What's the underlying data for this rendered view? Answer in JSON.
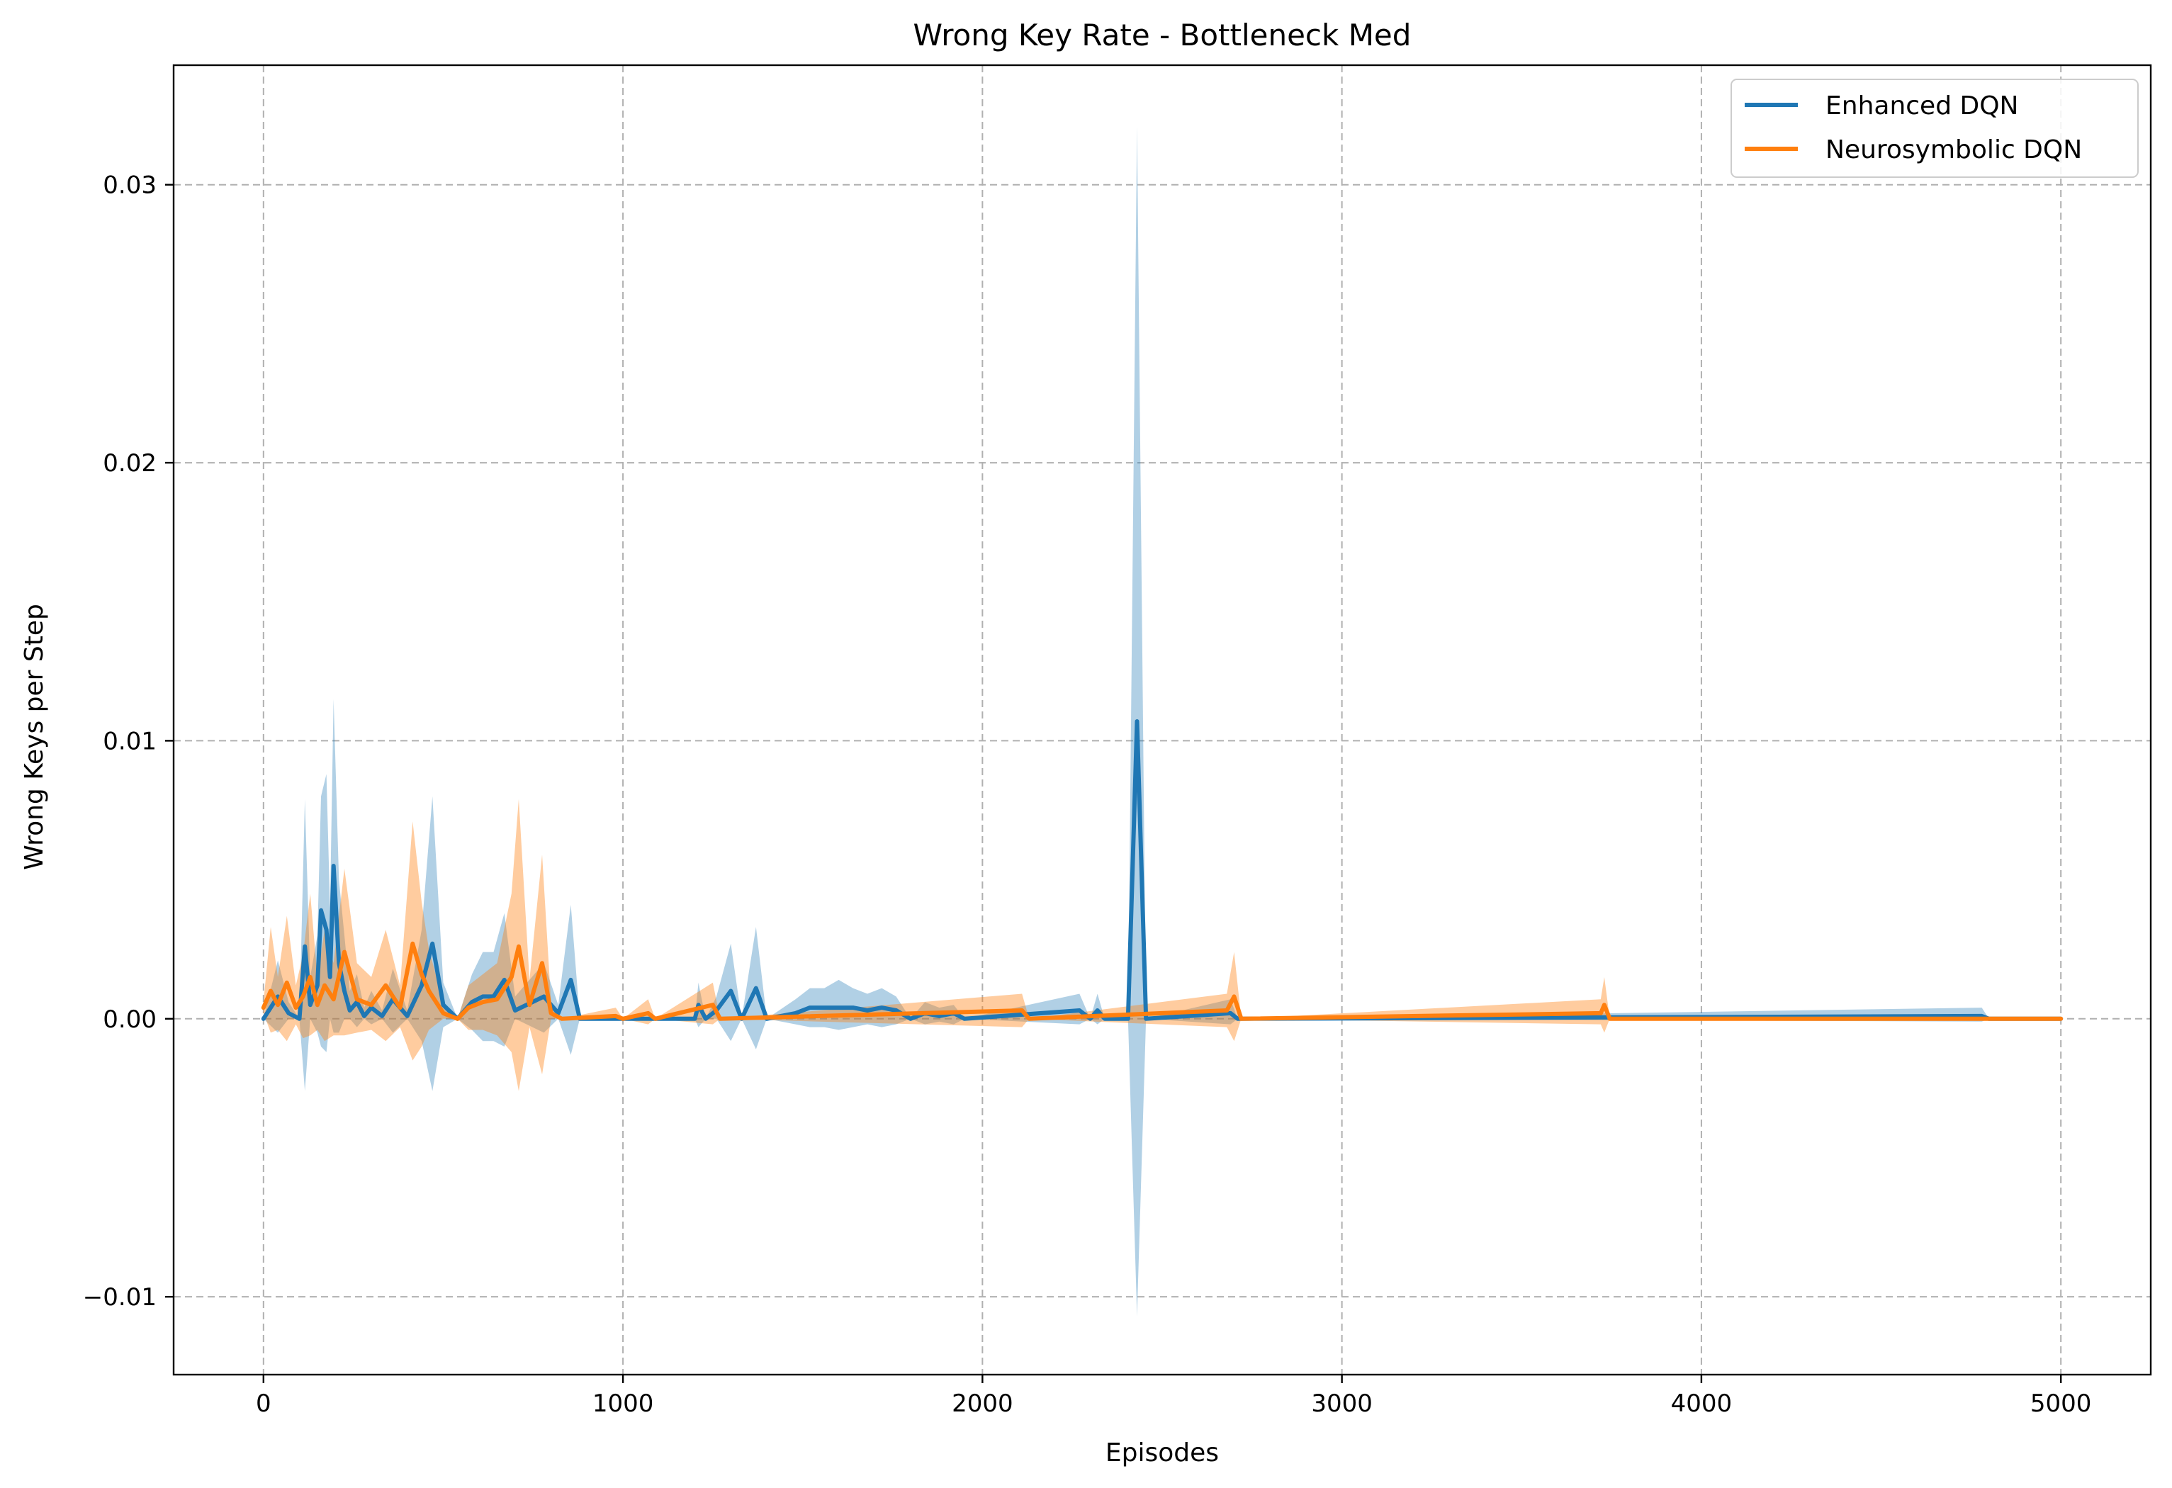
{
  "chart_data": {
    "type": "line",
    "title": "Wrong Key Rate - Bottleneck Med",
    "xlabel": "Episodes",
    "ylabel": "Wrong Keys per Step",
    "xlim": [
      -250,
      5250
    ],
    "ylim": [
      -0.0128,
      0.0343
    ],
    "xticks": [
      0,
      1000,
      2000,
      3000,
      4000,
      5000
    ],
    "xtick_labels": [
      "0",
      "1000",
      "2000",
      "3000",
      "4000",
      "5000"
    ],
    "yticks": [
      -0.01,
      0.0,
      0.01,
      0.02,
      0.03
    ],
    "ytick_labels": [
      "−0.01",
      "0.00",
      "0.01",
      "0.02",
      "0.03"
    ],
    "grid": true,
    "legend_position": "top-right",
    "series": [
      {
        "name": "Enhanced DQN",
        "color": "#1f77b4",
        "band_opacity": 0.35,
        "points": [
          [
            0,
            0,
            0,
            0
          ],
          [
            40,
            0.0008,
            -0.0005,
            0.0021
          ],
          [
            70,
            0.0002,
            0,
            0.0006
          ],
          [
            100,
            0,
            0,
            0
          ],
          [
            115,
            0.0026,
            -0.0026,
            0.0079
          ],
          [
            130,
            0.0005,
            0,
            0.0015
          ],
          [
            150,
            0.0012,
            -0.0005,
            0.003
          ],
          [
            160,
            0.0039,
            -0.001,
            0.008
          ],
          [
            175,
            0.0032,
            -0.0012,
            0.0088
          ],
          [
            185,
            0.0015,
            0,
            0.004
          ],
          [
            195,
            0.0055,
            -0.0005,
            0.0115
          ],
          [
            210,
            0.002,
            -0.0005,
            0.005
          ],
          [
            225,
            0.001,
            0,
            0.003
          ],
          [
            240,
            0.0003,
            0,
            0.001
          ],
          [
            260,
            0.0006,
            -0.0003,
            0.0016
          ],
          [
            280,
            0.0001,
            0,
            0.0004
          ],
          [
            300,
            0.0004,
            -0.0002,
            0.001
          ],
          [
            330,
            0.0001,
            0,
            0.0003
          ],
          [
            360,
            0.0007,
            -0.0005,
            0.0018
          ],
          [
            400,
            0.0001,
            0,
            0.0003
          ],
          [
            440,
            0.0012,
            -0.0008,
            0.0032
          ],
          [
            470,
            0.0027,
            -0.0026,
            0.008
          ],
          [
            500,
            0.0005,
            -0.0003,
            0.0013
          ],
          [
            540,
            0,
            0,
            0
          ],
          [
            580,
            0.0006,
            -0.0004,
            0.0016
          ],
          [
            610,
            0.0008,
            -0.0008,
            0.0024
          ],
          [
            640,
            0.0008,
            -0.0008,
            0.0024
          ],
          [
            670,
            0.0014,
            -0.001,
            0.0038
          ],
          [
            700,
            0.0003,
            0,
            0.0008
          ],
          [
            780,
            0.0008,
            -0.0005,
            0.002
          ],
          [
            820,
            0.0002,
            0,
            0.0005
          ],
          [
            855,
            0.0014,
            -0.0013,
            0.0041
          ],
          [
            880,
            0,
            0,
            0
          ],
          [
            1200,
            0,
            0,
            0
          ],
          [
            1210,
            0.0005,
            -0.0003,
            0.0013
          ],
          [
            1230,
            0,
            0,
            0
          ],
          [
            1260,
            0.0003,
            0,
            0.0008
          ],
          [
            1300,
            0.001,
            -0.0008,
            0.0027
          ],
          [
            1330,
            0,
            0,
            0
          ],
          [
            1370,
            0.0011,
            -0.0011,
            0.0033
          ],
          [
            1400,
            0,
            0,
            0
          ],
          [
            1480,
            0.0002,
            -0.0002,
            0.0007
          ],
          [
            1520,
            0.0004,
            -0.0003,
            0.0011
          ],
          [
            1560,
            0.0004,
            -0.0003,
            0.0011
          ],
          [
            1600,
            0.0004,
            -0.0004,
            0.0014
          ],
          [
            1640,
            0.0004,
            -0.0003,
            0.0011
          ],
          [
            1680,
            0.0003,
            -0.0002,
            0.0009
          ],
          [
            1720,
            0.0004,
            -0.0003,
            0.0011
          ],
          [
            1760,
            0.0003,
            -0.0002,
            0.0008
          ],
          [
            1800,
            0,
            0,
            0
          ],
          [
            1840,
            0.0002,
            -0.0002,
            0.0006
          ],
          [
            1880,
            0.0001,
            -0.0001,
            0.0004
          ],
          [
            1920,
            0.0002,
            -0.0002,
            0.0005
          ],
          [
            1950,
            0,
            0,
            0
          ],
          [
            2270,
            0.0003,
            -0.0002,
            0.0009
          ],
          [
            2300,
            0,
            0,
            0
          ],
          [
            2320,
            0.0003,
            -0.0002,
            0.0009
          ],
          [
            2340,
            0,
            0,
            0
          ],
          [
            2405,
            0,
            0,
            0
          ],
          [
            2430,
            0.0107,
            -0.0107,
            0.0321
          ],
          [
            2455,
            0,
            0,
            0
          ],
          [
            2690,
            0.0002,
            -0.0002,
            0.0007
          ],
          [
            2710,
            0,
            0,
            0
          ],
          [
            4780,
            0.0001,
            -0.0001,
            0.0004
          ],
          [
            4800,
            0,
            0,
            0
          ],
          [
            5000,
            0,
            0,
            0
          ]
        ]
      },
      {
        "name": "Neurosymbolic DQN",
        "color": "#ff7f0e",
        "band_opacity": 0.4,
        "points": [
          [
            0,
            0.0004,
            0.0002,
            0.0006
          ],
          [
            20,
            0.001,
            -0.0005,
            0.0033
          ],
          [
            40,
            0.0005,
            -0.0004,
            0.0015
          ],
          [
            65,
            0.0013,
            -0.0008,
            0.0037
          ],
          [
            90,
            0.0004,
            -0.0002,
            0.0012
          ],
          [
            110,
            0.0008,
            -0.0007,
            0.0023
          ],
          [
            130,
            0.0015,
            -0.0006,
            0.0045
          ],
          [
            150,
            0.0005,
            -0.0004,
            0.0015
          ],
          [
            170,
            0.0012,
            -0.0008,
            0.0032
          ],
          [
            195,
            0.0007,
            -0.0006,
            0.002
          ],
          [
            225,
            0.0024,
            -0.0006,
            0.0054
          ],
          [
            260,
            0.0007,
            -0.0005,
            0.002
          ],
          [
            300,
            0.0005,
            -0.0004,
            0.0015
          ],
          [
            340,
            0.0012,
            -0.0008,
            0.0032
          ],
          [
            380,
            0.0004,
            -0.0003,
            0.0012
          ],
          [
            415,
            0.0027,
            -0.0015,
            0.0071
          ],
          [
            440,
            0.0016,
            -0.001,
            0.0042
          ],
          [
            460,
            0.001,
            -0.0004,
            0.0025
          ],
          [
            500,
            0.0002,
            0,
            0.0006
          ],
          [
            540,
            0,
            0,
            0
          ],
          [
            570,
            0.0004,
            -0.0004,
            0.0012
          ],
          [
            610,
            0.0006,
            -0.0004,
            0.0016
          ],
          [
            650,
            0.0007,
            -0.0006,
            0.002
          ],
          [
            690,
            0.0015,
            -0.0012,
            0.0045
          ],
          [
            710,
            0.0026,
            -0.0026,
            0.0079
          ],
          [
            740,
            0.0005,
            -0.0003,
            0.0014
          ],
          [
            775,
            0.002,
            -0.002,
            0.0059
          ],
          [
            800,
            0.0002,
            0,
            0.0006
          ],
          [
            830,
            0,
            0,
            0
          ],
          [
            980,
            0.0001,
            0,
            0.0004
          ],
          [
            1000,
            0,
            0,
            0
          ],
          [
            1070,
            0.0002,
            -0.0002,
            0.0007
          ],
          [
            1090,
            0,
            0,
            0
          ],
          [
            1250,
            0.0005,
            -0.0002,
            0.0013
          ],
          [
            1270,
            0,
            0,
            0
          ],
          [
            2110,
            0.0003,
            -0.0003,
            0.0009
          ],
          [
            2130,
            0,
            0,
            0
          ],
          [
            2680,
            0.0003,
            -0.0003,
            0.0009
          ],
          [
            2700,
            0.0008,
            -0.0008,
            0.0024
          ],
          [
            2720,
            0,
            0,
            0
          ],
          [
            3720,
            0.0002,
            -0.0002,
            0.0007
          ],
          [
            3730,
            0.0005,
            -0.0005,
            0.0015
          ],
          [
            3745,
            0,
            0,
            0
          ],
          [
            5000,
            0,
            0,
            0
          ]
        ]
      }
    ]
  }
}
